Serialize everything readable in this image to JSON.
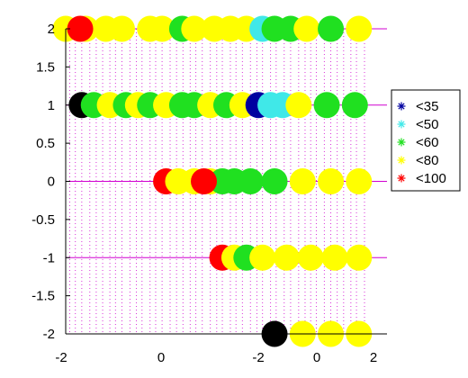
{
  "chart_data": {
    "type": "scatter",
    "title": "",
    "xlabel": "",
    "ylabel": "",
    "ylim": [
      -2,
      2
    ],
    "grid": "vertical dotted magenta lines at sample positions",
    "legend_position": "right",
    "x_tick_labels": [
      "-2",
      "0",
      "-2",
      "0",
      "2"
    ],
    "y_ticks": [
      -2,
      -1.5,
      -1,
      -0.5,
      0,
      0.5,
      1,
      1.5,
      2
    ],
    "y_tick_labels": [
      "-2",
      "-1.5",
      "-1",
      "-0.5",
      "0",
      "0.5",
      "1",
      "1.5",
      "2"
    ],
    "legend": [
      {
        "label": "<35",
        "color": "#0000a0"
      },
      {
        "label": "<50",
        "color": "#40e8e8"
      },
      {
        "label": "<60",
        "color": "#20e020"
      },
      {
        "label": "<80",
        "color": "#ffff00"
      },
      {
        "label": "<100",
        "color": "#ff0000"
      }
    ],
    "colors": {
      "black": "#000000",
      "red": "#ff0000",
      "yellow": "#ffff00",
      "green": "#20e020",
      "cyan": "#40e8e8",
      "blue": "#0000a0",
      "grid": "#d000d0",
      "axis": "#000000"
    },
    "rows": [
      {
        "y": 2,
        "points": [
          {
            "x": 0.0,
            "c": "yellow"
          },
          {
            "x": 0.25,
            "c": "yellow"
          },
          {
            "x": 0.5,
            "c": "yellow"
          },
          {
            "x": 0.7,
            "c": "yellow"
          },
          {
            "x": 1.05,
            "c": "yellow"
          },
          {
            "x": 1.2,
            "c": "yellow"
          },
          {
            "x": 1.45,
            "c": "green"
          },
          {
            "x": 1.6,
            "c": "yellow"
          },
          {
            "x": 1.85,
            "c": "yellow"
          },
          {
            "x": 2.05,
            "c": "yellow"
          },
          {
            "x": 2.25,
            "c": "yellow"
          },
          {
            "x": 2.45,
            "c": "cyan"
          },
          {
            "x": 2.6,
            "c": "green"
          },
          {
            "x": 2.8,
            "c": "green"
          },
          {
            "x": 3.0,
            "c": "yellow"
          },
          {
            "x": 3.3,
            "c": "green"
          },
          {
            "x": 3.65,
            "c": "yellow"
          },
          {
            "x": 0.18,
            "c": "red"
          }
        ]
      },
      {
        "y": 1,
        "points": [
          {
            "x": 0.2,
            "c": "black"
          },
          {
            "x": 0.35,
            "c": "green"
          },
          {
            "x": 0.55,
            "c": "yellow"
          },
          {
            "x": 0.75,
            "c": "green"
          },
          {
            "x": 0.9,
            "c": "yellow"
          },
          {
            "x": 1.05,
            "c": "green"
          },
          {
            "x": 1.25,
            "c": "yellow"
          },
          {
            "x": 1.45,
            "c": "green"
          },
          {
            "x": 1.6,
            "c": "green"
          },
          {
            "x": 1.8,
            "c": "yellow"
          },
          {
            "x": 2.0,
            "c": "green"
          },
          {
            "x": 2.2,
            "c": "yellow"
          },
          {
            "x": 2.4,
            "c": "blue"
          },
          {
            "x": 2.55,
            "c": "cyan"
          },
          {
            "x": 2.7,
            "c": "cyan"
          },
          {
            "x": 2.9,
            "c": "yellow"
          },
          {
            "x": 3.25,
            "c": "green"
          },
          {
            "x": 3.6,
            "c": "green"
          }
        ]
      },
      {
        "y": 0,
        "points": [
          {
            "x": 1.25,
            "c": "red"
          },
          {
            "x": 1.4,
            "c": "yellow"
          },
          {
            "x": 1.6,
            "c": "yellow"
          },
          {
            "x": 1.8,
            "c": "yellow"
          },
          {
            "x": 1.95,
            "c": "green"
          },
          {
            "x": 2.1,
            "c": "green"
          },
          {
            "x": 2.3,
            "c": "green"
          },
          {
            "x": 2.6,
            "c": "green"
          },
          {
            "x": 2.95,
            "c": "yellow"
          },
          {
            "x": 3.3,
            "c": "yellow"
          },
          {
            "x": 3.65,
            "c": "yellow"
          },
          {
            "x": 1.72,
            "c": "red"
          }
        ]
      },
      {
        "y": -1,
        "points": [
          {
            "x": 1.95,
            "c": "red"
          },
          {
            "x": 2.1,
            "c": "yellow"
          },
          {
            "x": 2.25,
            "c": "green"
          },
          {
            "x": 2.45,
            "c": "yellow"
          },
          {
            "x": 2.75,
            "c": "yellow"
          },
          {
            "x": 3.05,
            "c": "yellow"
          },
          {
            "x": 3.35,
            "c": "yellow"
          },
          {
            "x": 3.65,
            "c": "yellow"
          }
        ]
      },
      {
        "y": -2,
        "points": [
          {
            "x": 2.6,
            "c": "black"
          },
          {
            "x": 2.95,
            "c": "yellow"
          },
          {
            "x": 3.3,
            "c": "yellow"
          },
          {
            "x": 3.65,
            "c": "yellow"
          }
        ]
      }
    ],
    "grid_x": [
      0.05,
      0.12,
      0.2,
      0.3,
      0.38,
      0.46,
      0.55,
      0.62,
      0.7,
      0.8,
      0.88,
      0.95,
      1.05,
      1.12,
      1.2,
      1.3,
      1.38,
      1.46,
      1.55,
      1.62,
      1.7,
      1.8,
      1.88,
      1.95,
      2.05,
      2.12,
      2.2,
      2.3,
      2.38,
      2.45,
      2.55,
      2.62,
      2.72,
      2.8,
      2.9,
      2.98,
      3.05,
      3.12,
      3.22,
      3.3,
      3.38,
      3.46,
      3.55,
      3.62,
      3.72
    ]
  }
}
